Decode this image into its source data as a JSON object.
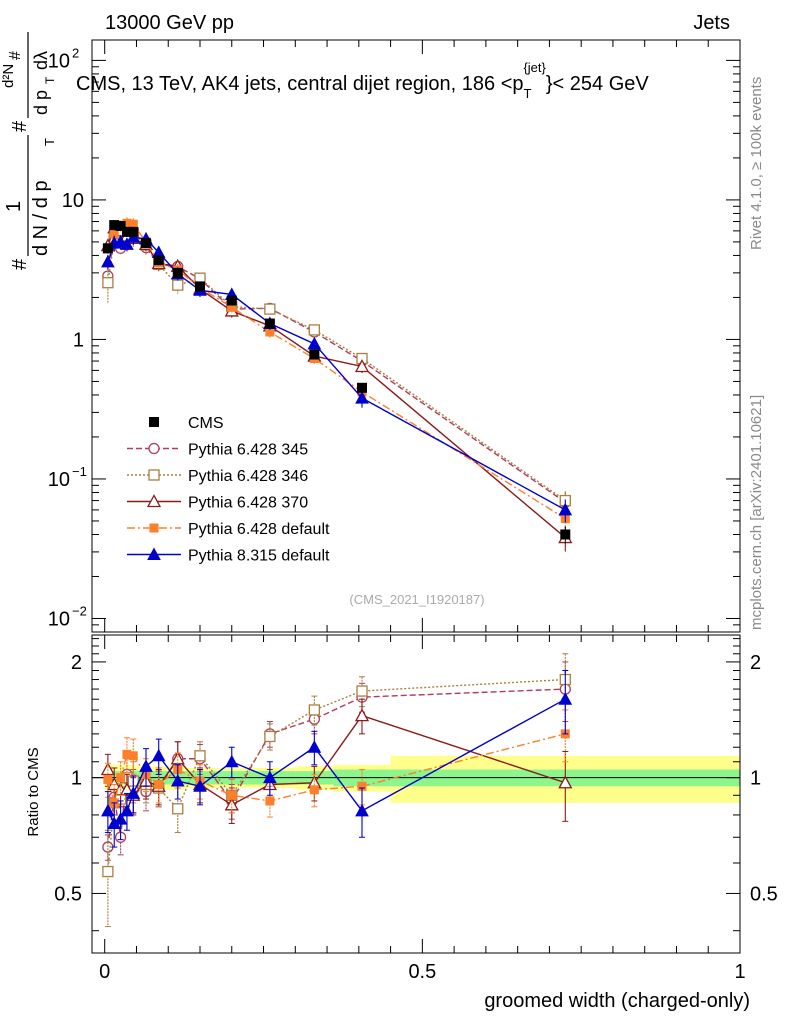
{
  "header": {
    "left": "13000 GeV pp",
    "right": "Jets"
  },
  "side": {
    "rivet": "Rivet 4.1.0, ≥ 100k events",
    "mcplots": "mcplots.cern.ch [arXiv:2401.10621]"
  },
  "watermark": "(CMS_2021_I1920187)",
  "chart_data": {
    "type": "line",
    "title_parts": {
      "main": "CMS, 13 TeV, AK4 jets, central dijet region, 186 <p",
      "sub": "T",
      "sup": "{jet}",
      "tail": "}< 254 GeV"
    },
    "ylabel_parts": {
      "hash1": "#",
      "one": "1",
      "dN": "d N / d p",
      "T1": "T",
      "hash2": "#",
      "d2N": "d²N",
      "dp": "d p",
      "T2": "T",
      "hash3": "#",
      "dl": "dλ"
    },
    "xlabel": "groomed width (charged-only)",
    "ratio_ylabel": "Ratio to CMS",
    "xlim": [
      -0.02,
      1.0
    ],
    "ylim": [
      0.008,
      140
    ],
    "ratio_ylim": [
      0.35,
      2.35
    ],
    "x_ticks": [
      {
        "v": 0,
        "label": "0"
      },
      {
        "v": 0.5,
        "label": "0.5"
      },
      {
        "v": 1,
        "label": "1"
      }
    ],
    "y_ticks": [
      {
        "v": 100,
        "base": "10",
        "exp": "2"
      },
      {
        "v": 10,
        "base": "10",
        "exp": ""
      },
      {
        "v": 1,
        "base": "1",
        "exp": ""
      },
      {
        "v": 0.1,
        "base": "10",
        "exp": "−1"
      },
      {
        "v": 0.01,
        "base": "10",
        "exp": "−2"
      }
    ],
    "ratio_ticks": [
      {
        "v": 0.5,
        "label": "0.5"
      },
      {
        "v": 1,
        "label": "1"
      },
      {
        "v": 2,
        "label": "2"
      }
    ],
    "x": [
      0.005,
      0.015,
      0.025,
      0.035,
      0.045,
      0.065,
      0.085,
      0.115,
      0.15,
      0.2,
      0.26,
      0.33,
      0.405,
      0.725
    ],
    "bin_edges": [
      0,
      0.01,
      0.02,
      0.03,
      0.04,
      0.05,
      0.075,
      0.1,
      0.125,
      0.175,
      0.225,
      0.3,
      0.36,
      0.45,
      1.0
    ],
    "data": {
      "name": "CMS",
      "values": [
        4.5,
        6.6,
        6.5,
        5.9,
        5.9,
        4.9,
        3.7,
        3.0,
        2.4,
        1.9,
        1.3,
        0.78,
        0.45,
        0.04
      ],
      "band_inner": [
        0.04,
        0.04,
        0.04,
        0.04,
        0.04,
        0.04,
        0.04,
        0.04,
        0.04,
        0.04,
        0.04,
        0.04,
        0.05,
        0.05
      ],
      "band_outer": [
        0.08,
        0.08,
        0.08,
        0.08,
        0.08,
        0.07,
        0.07,
        0.07,
        0.06,
        0.06,
        0.06,
        0.07,
        0.08,
        0.14
      ]
    },
    "series": [
      {
        "name": "Pythia 6.428 345",
        "color": "#b03c5c",
        "marker": "circle-open",
        "dash": "6,3",
        "values": [
          2.85,
          5.4,
          4.5,
          5.6,
          5.3,
          4.55,
          3.45,
          3.33,
          2.72,
          1.65,
          1.67,
          1.13,
          0.7,
          0.068
        ],
        "ratio": [
          0.66,
          0.89,
          0.7,
          1.02,
          0.93,
          0.92,
          0.94,
          1.12,
          1.12,
          0.87,
          1.3,
          1.42,
          1.62,
          1.7
        ],
        "ratio_err": [
          0.05,
          0.09,
          0.07,
          0.12,
          0.12,
          0.1,
          0.1,
          0.12,
          0.1,
          0.09,
          0.1,
          0.12,
          0.14,
          0.3
        ]
      },
      {
        "name": "Pythia 6.428 346",
        "color": "#a88040",
        "marker": "square-open",
        "dash": "2,2",
        "values": [
          2.55,
          5.2,
          5.7,
          5.85,
          5.75,
          4.75,
          3.45,
          2.45,
          2.75,
          1.72,
          1.65,
          1.17,
          0.73,
          0.07
        ],
        "ratio": [
          0.57,
          0.86,
          0.88,
          1.0,
          0.98,
          0.96,
          0.94,
          0.83,
          1.14,
          0.9,
          1.28,
          1.5,
          1.68,
          1.8
        ],
        "ratio_err": [
          0.16,
          0.12,
          0.12,
          0.12,
          0.12,
          0.1,
          0.1,
          0.11,
          0.1,
          0.09,
          0.1,
          0.13,
          0.15,
          0.3
        ]
      },
      {
        "name": "Pythia 6.428 370",
        "color": "#8b1a1a",
        "marker": "triangle-open",
        "dash": "",
        "values": [
          4.7,
          6.3,
          6.0,
          5.5,
          5.3,
          4.8,
          3.5,
          3.35,
          2.3,
          1.6,
          1.25,
          0.76,
          0.64,
          0.038
        ],
        "ratio": [
          1.05,
          0.96,
          0.93,
          0.93,
          0.9,
          0.98,
          0.95,
          1.12,
          0.96,
          0.85,
          0.96,
          0.97,
          1.45,
          0.97
        ],
        "ratio_err": [
          0.1,
          0.1,
          0.09,
          0.09,
          0.1,
          0.1,
          0.1,
          0.12,
          0.1,
          0.09,
          0.09,
          0.1,
          0.15,
          0.2
        ]
      },
      {
        "name": "Pythia 6.428 default",
        "color": "#ff7f2a",
        "marker": "square-filled",
        "dash": "8,3,2,3",
        "values": [
          4.45,
          5.7,
          6.5,
          6.8,
          6.7,
          5.0,
          3.55,
          3.15,
          2.35,
          1.7,
          1.13,
          0.73,
          0.42,
          0.052
        ],
        "ratio": [
          0.99,
          0.86,
          1.0,
          1.15,
          1.14,
          1.02,
          0.96,
          1.05,
          0.98,
          0.9,
          0.87,
          0.93,
          0.95,
          1.3
        ],
        "ratio_err": [
          0.1,
          0.1,
          0.1,
          0.12,
          0.12,
          0.1,
          0.1,
          0.11,
          0.1,
          0.09,
          0.08,
          0.09,
          0.1,
          0.2
        ]
      },
      {
        "name": "Pythia 8.315 default",
        "color": "#0000cc",
        "marker": "triangle-filled",
        "dash": "",
        "values": [
          3.6,
          4.9,
          5.0,
          4.8,
          5.4,
          5.25,
          4.2,
          2.95,
          2.25,
          2.1,
          1.3,
          0.93,
          0.38,
          0.06
        ],
        "ratio": [
          0.82,
          0.76,
          0.78,
          0.82,
          0.91,
          1.07,
          1.14,
          0.98,
          0.95,
          1.1,
          1.0,
          1.2,
          0.82,
          1.6
        ],
        "ratio_err": [
          0.1,
          0.1,
          0.09,
          0.09,
          0.1,
          0.12,
          0.12,
          0.1,
          0.1,
          0.1,
          0.1,
          0.12,
          0.12,
          0.3
        ]
      }
    ]
  }
}
